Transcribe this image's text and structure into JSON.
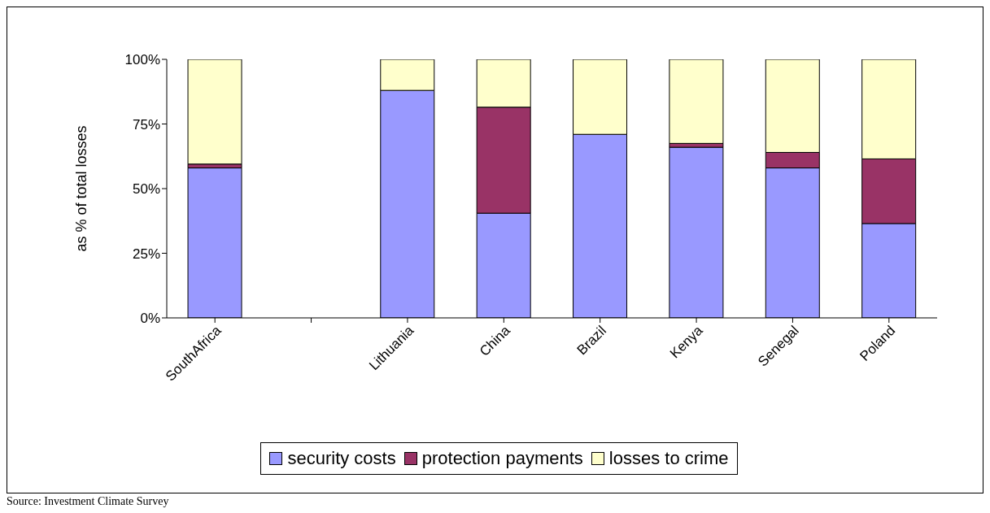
{
  "chart_data": {
    "type": "bar",
    "stacked": true,
    "ylabel": "as % of total losses",
    "categories": [
      "SouthAfrica",
      null,
      "Lithuania",
      "China",
      "Brazil",
      "Kenya",
      "Senegal",
      "Poland"
    ],
    "series": [
      {
        "name": "security costs",
        "color": "#9999ff",
        "values": [
          58,
          null,
          88,
          40.5,
          71,
          66,
          58,
          36.5
        ]
      },
      {
        "name": "protection payments",
        "color": "#993366",
        "values": [
          1.5,
          null,
          0,
          41,
          0,
          1.5,
          6,
          25
        ]
      },
      {
        "name": "losses to crime",
        "color": "#ffffcc",
        "values": [
          40.5,
          null,
          12,
          18.5,
          29,
          32.5,
          36,
          38.5
        ]
      }
    ],
    "ylim": [
      0,
      100
    ],
    "yticks": [
      {
        "value": 0,
        "label": "0%"
      },
      {
        "value": 25,
        "label": "25%"
      },
      {
        "value": 50,
        "label": "50%"
      },
      {
        "value": 75,
        "label": "75%"
      },
      {
        "value": 100,
        "label": "100%"
      }
    ],
    "grid": false,
    "legend": "bottom",
    "annotations": [
      "Source: Investment Climate Survey"
    ]
  }
}
